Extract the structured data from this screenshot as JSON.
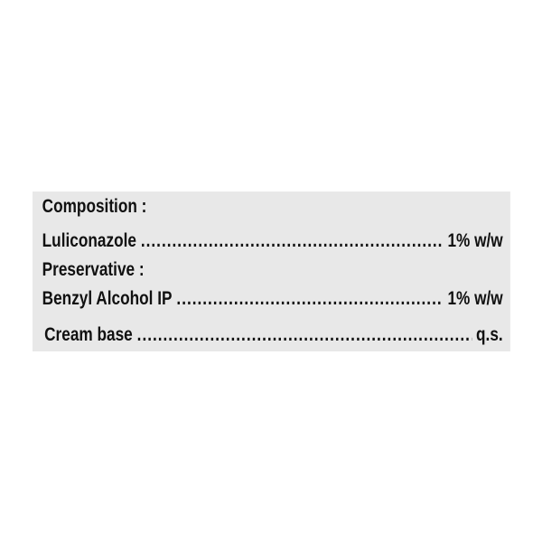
{
  "composition": {
    "heading": "Composition :",
    "items": [
      {
        "name": "Luliconazole",
        "amount": "1% w/w"
      }
    ]
  },
  "preservative": {
    "heading": "Preservative :",
    "items": [
      {
        "name": "Benzyl Alcohol IP",
        "amount": "1% w/w"
      },
      {
        "name": "Cream base",
        "amount": "q.s."
      }
    ]
  },
  "colors": {
    "panel_background": "#e8e8e8",
    "text": "#111111"
  }
}
